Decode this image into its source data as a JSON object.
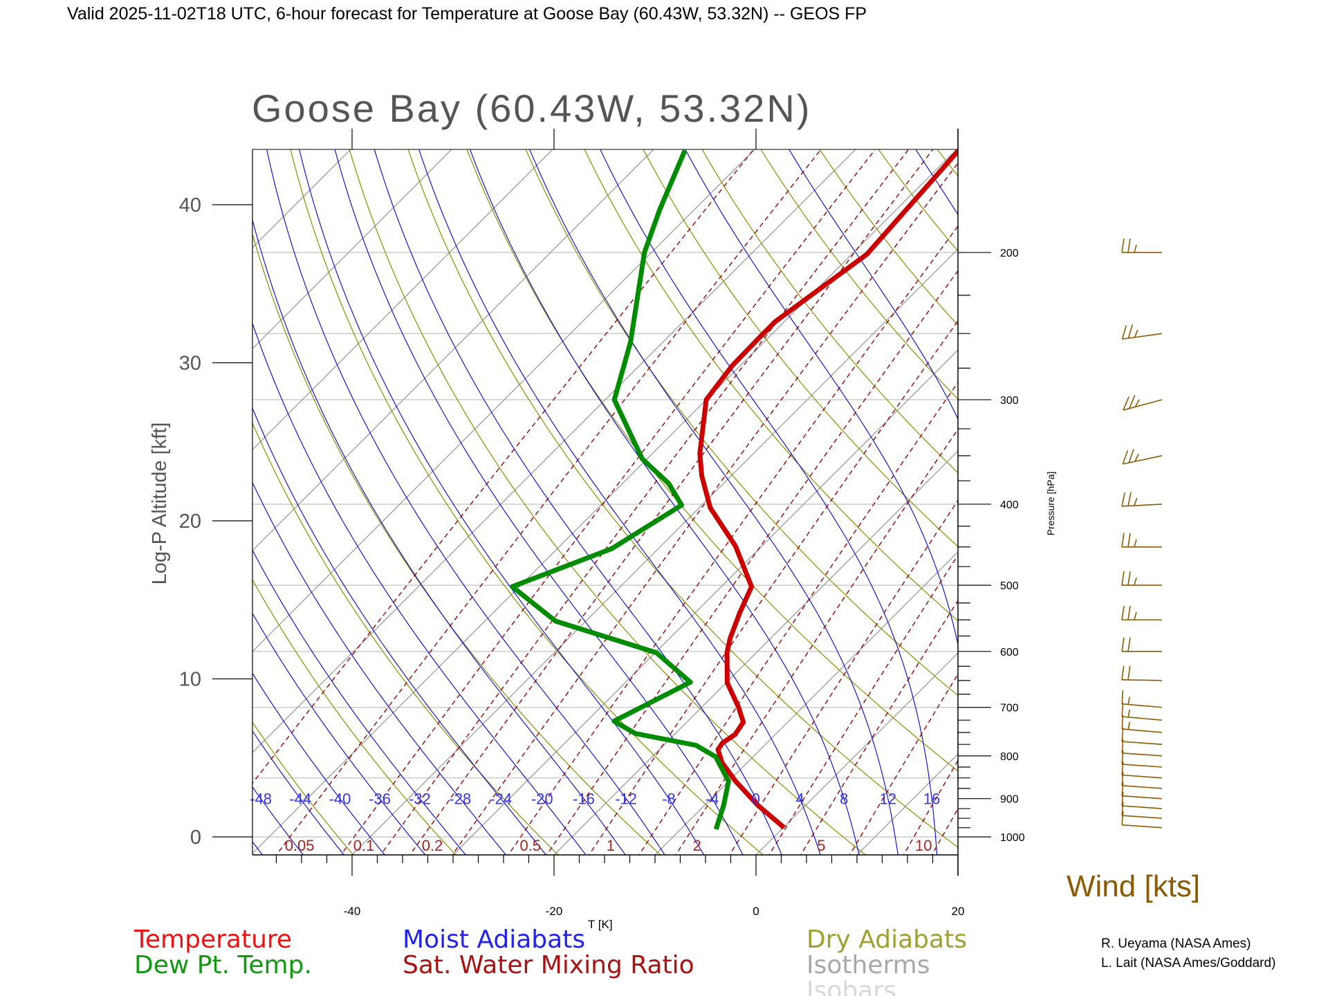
{
  "header": {
    "title": "Valid 2025-11-02T18 UTC, 6-hour forecast for Temperature at Goose Bay (60.43W, 53.32N) -- GEOS FP",
    "station_title": "Goose Bay (60.43W, 53.32N)"
  },
  "credits": [
    "R. Ueyama (NASA Ames)",
    "L. Lait (NASA Ames/Goddard)"
  ],
  "chart_data": {
    "type": "line",
    "subtype": "skew-T log-p diagram",
    "title": "Goose Bay (60.43W, 53.32N)",
    "xlabel": "T [K]",
    "ylabel": "Log-P Altitude [kft]",
    "y2label": "Pressure [hPa]",
    "xticks": [
      "-40",
      "-20",
      "0",
      "20"
    ],
    "xtick_values": [
      -40,
      -20,
      0,
      20
    ],
    "yticks": [
      "0",
      "10",
      "20",
      "30",
      "40"
    ],
    "ytick_values": [
      0,
      10,
      20,
      30,
      40
    ],
    "y2ticks": [
      "200",
      "300",
      "400",
      "500",
      "600",
      "700",
      "800",
      "900",
      "1000"
    ],
    "y2tick_values": [
      200,
      300,
      400,
      500,
      600,
      700,
      800,
      900,
      1000
    ],
    "xlim": [
      -50,
      20
    ],
    "pressure_range_hpa": [
      1050,
      150
    ],
    "colors": {
      "temperature": "#cc0000",
      "dewpoint": "#008c00",
      "moist_adiabat": "#0000dd",
      "mixing_ratio": "#990000",
      "dry_adiabat": "#8c8c00",
      "isotherm": "#999999",
      "isobar": "#cccccc",
      "wind": "#8c5a00"
    },
    "series": [
      {
        "name": "Temperature",
        "pressure_hpa": [
          975,
          917,
          858,
          815,
          786,
          772,
          754,
          729,
          699,
          654,
          602,
          579,
          539,
          502,
          449,
          404,
          370,
          348,
          300,
          273,
          252,
          242,
          201,
          151
        ],
        "temperature_c": [
          0.1,
          -4.7,
          -9.3,
          -12.5,
          -14.2,
          -14.4,
          -14.0,
          -14.4,
          -16.4,
          -19.9,
          -22.9,
          -24.0,
          -25.6,
          -27.0,
          -32.6,
          -38.9,
          -42.9,
          -45.3,
          -50.0,
          -50.8,
          -50.9,
          -50.9,
          -48.5,
          -49.7
        ]
      },
      {
        "name": "Dew Pt. Temp.",
        "pressure_hpa": [
          979,
          917,
          858,
          802,
          777,
          752,
          727,
          653,
          602,
          552,
          502,
          452,
          401,
          378,
          353,
          300,
          256,
          200,
          178,
          151
        ],
        "temperature_c": [
          -6.5,
          -8.1,
          -10.0,
          -13.7,
          -16.8,
          -24.0,
          -27.3,
          -23.6,
          -29.9,
          -43.0,
          -50.7,
          -44.6,
          -42.0,
          -45.4,
          -50.5,
          -59.1,
          -63.2,
          -70.7,
          -73.4,
          -76.8
        ]
      }
    ],
    "moist_adiabat_labels": [
      "-48",
      "-44",
      "-40",
      "-36",
      "-32",
      "-28",
      "-24",
      "-20",
      "-16",
      "-12",
      "-8",
      "-4",
      "0",
      "4",
      "8",
      "12",
      "16"
    ],
    "moist_adiabat_values": [
      -48,
      -44,
      -40,
      -36,
      -32,
      -28,
      -24,
      -20,
      -16,
      -12,
      -8,
      -4,
      0,
      4,
      8,
      12,
      16
    ],
    "mixing_ratio_labels": [
      "0.05",
      "0.1",
      "0.2",
      "0.5",
      "1",
      "2",
      "5",
      "10"
    ],
    "mixing_ratio_values": [
      0.05,
      0.1,
      0.2,
      0.5,
      1,
      2,
      5,
      10
    ],
    "wind": {
      "label": "Wind [kts]",
      "pressure_hpa": [
        200,
        250,
        300,
        350,
        400,
        450,
        500,
        550,
        600,
        650,
        700,
        725,
        750,
        775,
        800,
        825,
        850,
        875,
        900,
        925,
        950,
        975
      ],
      "speed_kts": [
        25,
        25,
        25,
        25,
        25,
        25,
        25,
        25,
        20,
        20,
        15,
        15,
        15,
        10,
        10,
        10,
        10,
        10,
        10,
        10,
        10,
        10
      ],
      "direction_deg": [
        270,
        278,
        285,
        282,
        273,
        270,
        270,
        270,
        270,
        269,
        265,
        265,
        265,
        266,
        266,
        266,
        266,
        266,
        266,
        266,
        266,
        266
      ]
    },
    "legend": {
      "placement": "bottom",
      "entries": [
        "Temperature",
        "Dew Pt. Temp.",
        "Moist Adiabats",
        "Sat. Water Mixing Ratio",
        "Dry Adiabats",
        "Isotherms",
        "Isobars"
      ]
    }
  }
}
